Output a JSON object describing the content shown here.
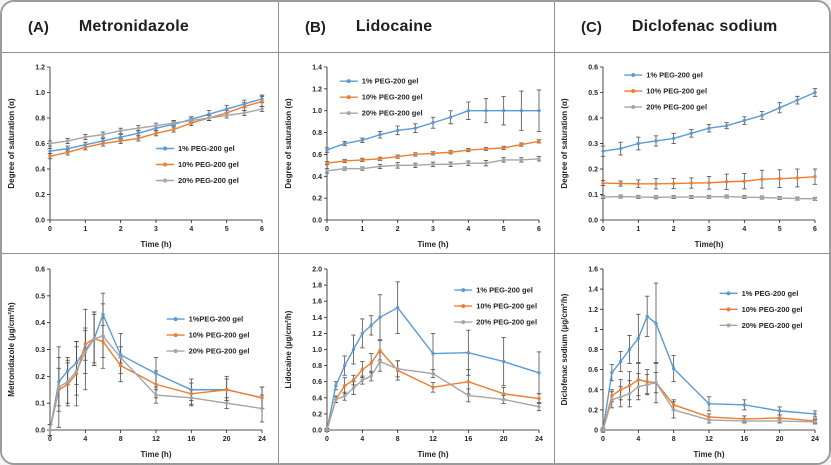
{
  "figure": {
    "border_color": "#9b9b9b",
    "series_colors": {
      "pct1": "#5b9bd5",
      "pct10": "#ed7d31",
      "pct20": "#a5a5a5"
    },
    "error_bar_color": "#4d4d4d"
  },
  "columns": [
    {
      "label": "(A)",
      "title": "Metronidazole"
    },
    {
      "label": "(B)",
      "title": "Lidocaine"
    },
    {
      "label": "(C)",
      "title": "Diclofenac sodium"
    }
  ],
  "chart_data": [
    {
      "type": "line",
      "name": "metronidazole-saturation",
      "xlabel": "Time (h)",
      "ylabel": "Degree of saturation (α)",
      "xlim": [
        0,
        6
      ],
      "ylim": [
        0,
        1.2
      ],
      "xticks": [
        0,
        1,
        2,
        3,
        4,
        5,
        6
      ],
      "xtick_labels": [
        "0",
        "1",
        "2",
        "3",
        "4",
        "5",
        "6"
      ],
      "yticks": [
        0,
        0.2,
        0.4,
        0.6,
        0.8,
        1.0,
        1.2
      ],
      "ytick_labels": [
        "0.0",
        "0.2",
        "0.4",
        "0.6",
        "0.8",
        "1.0",
        "1.2"
      ],
      "x": [
        0,
        0.5,
        1,
        1.5,
        2,
        2.5,
        3,
        3.5,
        4,
        4.5,
        5,
        5.5,
        6
      ],
      "legend_pos": [
        0.5,
        0.5
      ],
      "series": [
        {
          "name": "1% PEG-200 gel",
          "color": "#5b9bd5",
          "values": [
            0.54,
            0.56,
            0.59,
            0.62,
            0.65,
            0.68,
            0.72,
            0.75,
            0.79,
            0.83,
            0.87,
            0.91,
            0.95
          ],
          "err": [
            0.02,
            0.02,
            0.02,
            0.02,
            0.02,
            0.02,
            0.02,
            0.02,
            0.02,
            0.03,
            0.03,
            0.03,
            0.03
          ]
        },
        {
          "name": "10% PEG-200 gel",
          "color": "#ed7d31",
          "values": [
            0.5,
            0.53,
            0.57,
            0.6,
            0.62,
            0.64,
            0.68,
            0.71,
            0.76,
            0.8,
            0.84,
            0.89,
            0.93
          ],
          "err": [
            0.02,
            0.02,
            0.02,
            0.02,
            0.02,
            0.02,
            0.02,
            0.02,
            0.02,
            0.02,
            0.02,
            0.03,
            0.04
          ]
        },
        {
          "name": "20% PEG-200 gel",
          "color": "#a5a5a5",
          "values": [
            0.6,
            0.62,
            0.65,
            0.67,
            0.7,
            0.72,
            0.74,
            0.76,
            0.78,
            0.8,
            0.82,
            0.84,
            0.87
          ],
          "err": [
            0.02,
            0.02,
            0.02,
            0.02,
            0.02,
            0.02,
            0.02,
            0.02,
            0.02,
            0.02,
            0.02,
            0.02,
            0.02
          ]
        }
      ]
    },
    {
      "type": "line",
      "name": "lidocaine-saturation",
      "xlabel": "Time (h)",
      "ylabel": "Degree of saturation (α)",
      "xlim": [
        0,
        6
      ],
      "ylim": [
        0,
        1.4
      ],
      "xticks": [
        0,
        1,
        2,
        3,
        4,
        5,
        6
      ],
      "xtick_labels": [
        "0",
        "1",
        "2",
        "3",
        "4",
        "5",
        "6"
      ],
      "yticks": [
        0,
        0.2,
        0.4,
        0.6,
        0.8,
        1.0,
        1.2,
        1.4
      ],
      "ytick_labels": [
        "0.0",
        "0.2",
        "0.4",
        "0.6",
        "0.8",
        "1.0",
        "1.2",
        "1.4"
      ],
      "x": [
        0,
        0.5,
        1,
        1.5,
        2,
        2.5,
        3,
        3.5,
        4,
        4.5,
        5,
        5.5,
        6
      ],
      "legend_pos": [
        0.06,
        0.06
      ],
      "series": [
        {
          "name": "1% PEG-200 gel",
          "color": "#5b9bd5",
          "values": [
            0.64,
            0.7,
            0.73,
            0.78,
            0.82,
            0.84,
            0.89,
            0.94,
            1.0,
            1.0,
            1.0,
            1.0,
            1.0
          ],
          "err": [
            0.02,
            0.02,
            0.02,
            0.03,
            0.04,
            0.04,
            0.05,
            0.06,
            0.08,
            0.11,
            0.13,
            0.18,
            0.19
          ]
        },
        {
          "name": "10% PEG-200  gel",
          "color": "#ed7d31",
          "values": [
            0.52,
            0.54,
            0.55,
            0.56,
            0.58,
            0.6,
            0.61,
            0.62,
            0.64,
            0.65,
            0.66,
            0.69,
            0.72
          ],
          "err": [
            0.015,
            0.015,
            0.015,
            0.015,
            0.015,
            0.015,
            0.015,
            0.015,
            0.015,
            0.015,
            0.015,
            0.015,
            0.015
          ]
        },
        {
          "name": "20% PEG-200 gel",
          "color": "#a5a5a5",
          "values": [
            0.45,
            0.47,
            0.47,
            0.49,
            0.5,
            0.5,
            0.51,
            0.51,
            0.52,
            0.52,
            0.55,
            0.55,
            0.56
          ],
          "err": [
            0.02,
            0.015,
            0.015,
            0.02,
            0.025,
            0.02,
            0.02,
            0.02,
            0.02,
            0.025,
            0.02,
            0.02,
            0.02
          ]
        }
      ]
    },
    {
      "type": "line",
      "name": "diclofenac-saturation",
      "xlabel": "Time(h)",
      "ylabel": "Degree of saturation (α)",
      "xlim": [
        0,
        6
      ],
      "ylim": [
        0,
        0.6
      ],
      "xticks": [
        0,
        1,
        2,
        3,
        4,
        5,
        6
      ],
      "xtick_labels": [
        "0",
        "1",
        "2",
        "3",
        "4",
        "5",
        "6"
      ],
      "yticks": [
        0,
        0.1,
        0.2,
        0.3,
        0.4,
        0.5,
        0.6
      ],
      "ytick_labels": [
        "0.0",
        "0.1",
        "0.2",
        "0.3",
        "0.4",
        "0.5",
        "0.6"
      ],
      "x": [
        0,
        0.5,
        1,
        1.5,
        2,
        2.5,
        3,
        3.5,
        4,
        4.5,
        5,
        5.5,
        6
      ],
      "legend_pos": [
        0.1,
        0.02
      ],
      "series": [
        {
          "name": "1% PEG-200 gel",
          "color": "#5b9bd5",
          "values": [
            0.27,
            0.28,
            0.3,
            0.31,
            0.32,
            0.34,
            0.36,
            0.37,
            0.39,
            0.41,
            0.44,
            0.47,
            0.5
          ],
          "err": [
            0.02,
            0.025,
            0.025,
            0.02,
            0.02,
            0.015,
            0.015,
            0.012,
            0.015,
            0.015,
            0.02,
            0.015,
            0.015
          ]
        },
        {
          "name": "10% PEG-200 gel",
          "color": "#ed7d31",
          "values": [
            0.145,
            0.143,
            0.142,
            0.142,
            0.143,
            0.145,
            0.146,
            0.15,
            0.152,
            0.16,
            0.162,
            0.165,
            0.17
          ],
          "err": [
            0.01,
            0.01,
            0.015,
            0.02,
            0.02,
            0.02,
            0.025,
            0.03,
            0.03,
            0.035,
            0.035,
            0.035,
            0.03
          ]
        },
        {
          "name": "20% PEG-200 gel",
          "color": "#a5a5a5",
          "values": [
            0.09,
            0.092,
            0.09,
            0.089,
            0.09,
            0.09,
            0.091,
            0.092,
            0.09,
            0.088,
            0.086,
            0.084,
            0.083
          ],
          "err": [
            0.006,
            0.006,
            0.006,
            0.006,
            0.006,
            0.006,
            0.006,
            0.006,
            0.006,
            0.006,
            0.006,
            0.006,
            0.006
          ]
        }
      ]
    },
    {
      "type": "line",
      "name": "metronidazole-flux",
      "xlabel": "Time (h)",
      "ylabel": "Metronidazole (µg/cm²/h)",
      "xlim": [
        0,
        24
      ],
      "ylim": [
        0,
        0.6
      ],
      "xticks": [
        0,
        4,
        8,
        12,
        16,
        20,
        24
      ],
      "xtick_labels": [
        "0",
        "4",
        "8",
        "12",
        "16",
        "20",
        "24"
      ],
      "yticks": [
        0,
        0.1,
        0.2,
        0.3,
        0.4,
        0.5,
        0.6
      ],
      "ytick_labels": [
        "0.0",
        "0.1",
        "0.2",
        "0.3",
        "0.4",
        "0.5",
        "0.6"
      ],
      "x": [
        0,
        1,
        2,
        3,
        4,
        5,
        6,
        8,
        12,
        16,
        20,
        24
      ],
      "legend_pos": [
        0.55,
        0.28
      ],
      "series": [
        {
          "name": "1%PEG-200 gel",
          "color": "#5b9bd5",
          "values": [
            0,
            0.18,
            0.22,
            0.25,
            0.3,
            0.34,
            0.43,
            0.28,
            0.21,
            0.15,
            0.15,
            0.12
          ],
          "err": [
            0.02,
            0.09,
            0.05,
            0.08,
            0.15,
            0.1,
            0.08,
            0.03,
            0.06,
            0.04,
            0.04,
            0.04
          ]
        },
        {
          "name": "10% PEG-200 gel",
          "color": "#ed7d31",
          "values": [
            0,
            0.15,
            0.17,
            0.21,
            0.32,
            0.34,
            0.33,
            0.24,
            0.17,
            0.135,
            0.15,
            0.12
          ],
          "err": [
            0.02,
            0.08,
            0.08,
            0.12,
            0.06,
            0.1,
            0.06,
            0.03,
            0.05,
            0.04,
            0.05,
            0.04
          ]
        },
        {
          "name": "20% PEG-200 gel",
          "color": "#a5a5a5",
          "values": [
            0,
            0.16,
            0.18,
            0.22,
            0.29,
            0.34,
            0.35,
            0.27,
            0.13,
            0.12,
            0.1,
            0.08
          ],
          "err": [
            0.02,
            0.15,
            0.08,
            0.09,
            0.08,
            0.09,
            0.12,
            0.09,
            0.03,
            0.03,
            0.02,
            0.05
          ]
        }
      ]
    },
    {
      "type": "line",
      "name": "lidocaine-flux",
      "xlabel": "Time (h)",
      "ylabel": "Lidocaine (µg/cm²/h)",
      "xlim": [
        0,
        24
      ],
      "ylim": [
        0,
        2.0
      ],
      "xticks": [
        0,
        4,
        8,
        12,
        16,
        20,
        24
      ],
      "xtick_labels": [
        "0",
        "4",
        "8",
        "12",
        "16",
        "20",
        "24"
      ],
      "yticks": [
        0,
        0.2,
        0.4,
        0.6,
        0.8,
        1.0,
        1.2,
        1.4,
        1.6,
        1.8,
        2.0
      ],
      "ytick_labels": [
        "0.0",
        "0.2",
        "0.4",
        "0.6",
        "0.8",
        "1.0",
        "1.2",
        "1.4",
        "1.6",
        "1.8",
        "2.0"
      ],
      "x": [
        0,
        1,
        2,
        3,
        4,
        5,
        6,
        8,
        12,
        16,
        20,
        24
      ],
      "legend_pos": [
        0.6,
        0.1
      ],
      "series": [
        {
          "name": "1% PEG-200 gel",
          "color": "#5b9bd5",
          "values": [
            0,
            0.55,
            0.8,
            1.0,
            1.2,
            1.3,
            1.4,
            1.52,
            0.95,
            0.96,
            0.85,
            0.71
          ],
          "err": [
            0.02,
            0.05,
            0.12,
            0.18,
            0.18,
            0.12,
            0.28,
            0.32,
            0.25,
            0.28,
            0.3,
            0.26
          ]
        },
        {
          "name": "10% PEG-200 gel",
          "color": "#ed7d31",
          "values": [
            0,
            0.38,
            0.55,
            0.62,
            0.75,
            0.83,
            0.99,
            0.74,
            0.53,
            0.6,
            0.45,
            0.39
          ],
          "err": [
            0.02,
            0.04,
            0.1,
            0.06,
            0.1,
            0.12,
            0.12,
            0.12,
            0.06,
            0.15,
            0.08,
            0.06
          ]
        },
        {
          "name": "20% PEG-200 gel",
          "color": "#a5a5a5",
          "values": [
            0,
            0.38,
            0.42,
            0.52,
            0.62,
            0.67,
            0.85,
            0.76,
            0.7,
            0.43,
            0.38,
            0.29
          ],
          "err": [
            0.02,
            0.04,
            0.05,
            0.08,
            0.05,
            0.06,
            0.12,
            0.1,
            0.05,
            0.08,
            0.05,
            0.05
          ]
        }
      ]
    },
    {
      "type": "line",
      "name": "diclofenac-flux",
      "xlabel": "Time (h)",
      "ylabel": "Diclofenac sodium (µg/cm²/h)",
      "xlim": [
        0,
        24
      ],
      "ylim": [
        0,
        1.6
      ],
      "xticks": [
        0,
        4,
        8,
        12,
        16,
        20,
        24
      ],
      "xtick_labels": [
        "0",
        "4",
        "8",
        "12",
        "16",
        "20",
        "24"
      ],
      "yticks": [
        0,
        0.2,
        0.4,
        0.6,
        0.8,
        1.0,
        1.2,
        1.4,
        1.6
      ],
      "ytick_labels": [
        "0",
        "0.2",
        "0.4",
        "0.6",
        "0.8",
        "1",
        "1.2",
        "1.4",
        "1.6"
      ],
      "x": [
        0,
        1,
        2,
        3,
        4,
        5,
        6,
        8,
        12,
        16,
        20,
        24
      ],
      "legend_pos": [
        0.55,
        0.12
      ],
      "series": [
        {
          "name": "1% PEG-200  gel",
          "color": "#5b9bd5",
          "values": [
            0,
            0.57,
            0.68,
            0.8,
            0.91,
            1.13,
            1.06,
            0.61,
            0.26,
            0.25,
            0.19,
            0.16
          ],
          "err": [
            0.02,
            0.08,
            0.1,
            0.14,
            0.24,
            0.2,
            0.4,
            0.13,
            0.07,
            0.05,
            0.04,
            0.03
          ]
        },
        {
          "name": "10% PEG-200 gel",
          "color": "#ed7d31",
          "values": [
            0,
            0.34,
            0.4,
            0.44,
            0.5,
            0.48,
            0.47,
            0.25,
            0.13,
            0.11,
            0.12,
            0.09
          ],
          "err": [
            0.02,
            0.06,
            0.1,
            0.14,
            0.16,
            0.12,
            0.2,
            0.05,
            0.03,
            0.03,
            0.03,
            0.02
          ]
        },
        {
          "name": "20% PEG-200 gel",
          "color": "#a5a5a5",
          "values": [
            0,
            0.3,
            0.33,
            0.36,
            0.43,
            0.45,
            0.47,
            0.2,
            0.1,
            0.09,
            0.09,
            0.08
          ],
          "err": [
            0.02,
            0.08,
            0.1,
            0.13,
            0.13,
            0.1,
            0.1,
            0.08,
            0.03,
            0.02,
            0.02,
            0.02
          ]
        }
      ]
    }
  ]
}
